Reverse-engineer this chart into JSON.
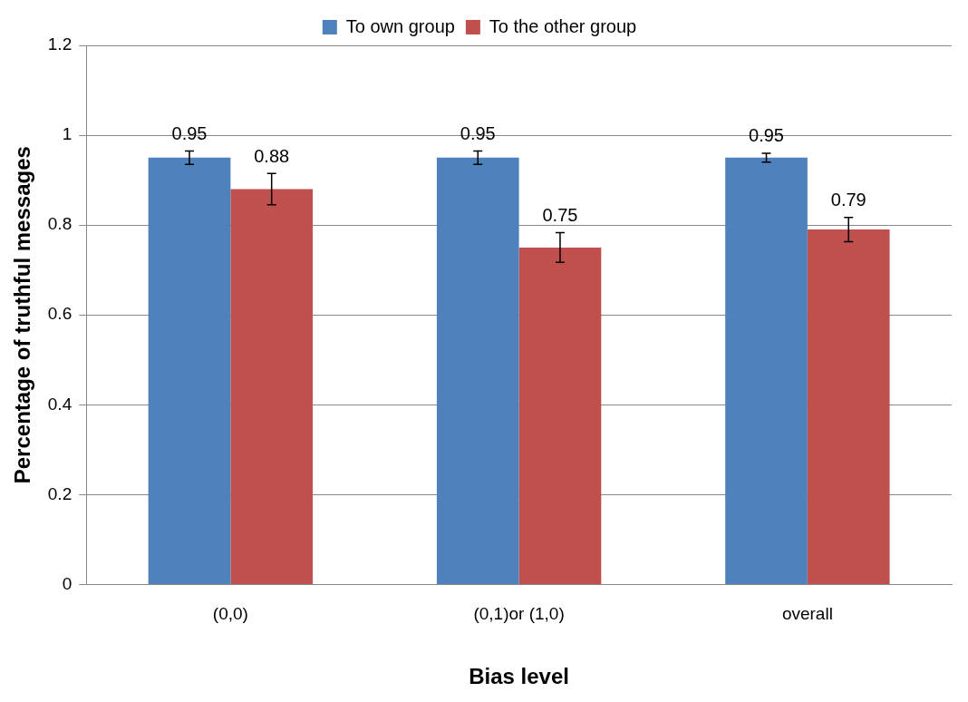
{
  "chart_data": {
    "type": "bar",
    "xlabel": "Bias level",
    "ylabel": "Percentage of truthful messages",
    "categories": [
      "(0,0)",
      "(0,1)or (1,0)",
      "overall"
    ],
    "series": [
      {
        "name": "To own group",
        "color": "#4f81bd",
        "values": [
          0.95,
          0.95,
          0.95
        ],
        "errors": [
          0.015,
          0.015,
          0.01
        ]
      },
      {
        "name": "To the other group",
        "color": "#c0504d",
        "values": [
          0.88,
          0.75,
          0.79
        ],
        "errors": [
          0.035,
          0.033,
          0.027
        ]
      }
    ],
    "ylim": [
      0,
      1.2
    ],
    "yticks": [
      0,
      0.2,
      0.4,
      0.6,
      0.8,
      1,
      1.2
    ],
    "grid": "y",
    "legend": "top",
    "data_labels": true
  }
}
